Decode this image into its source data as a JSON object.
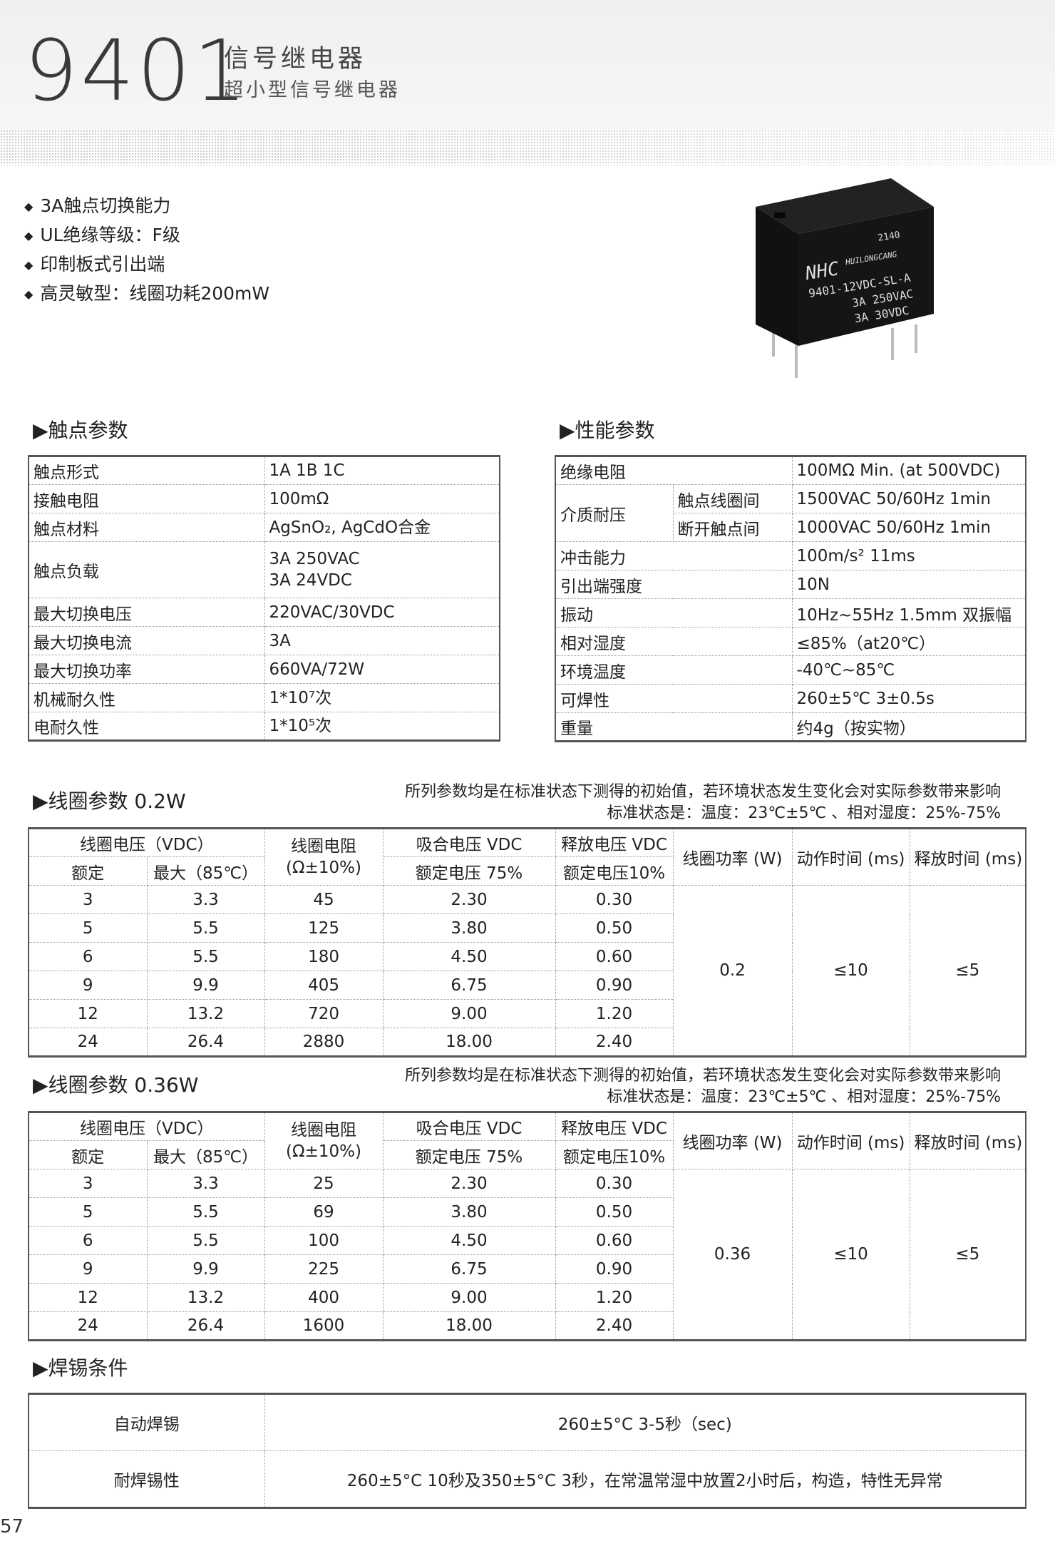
{
  "header": {
    "model": "9401",
    "title": "信号继电器",
    "subtitle": "超小型信号继电器"
  },
  "features": [
    "3A触点切换能力",
    "UL绝缘等级：F级",
    "印制板式引出端",
    "高灵敏型：线圈功耗200mW"
  ],
  "product_image": {
    "date_code": "2140",
    "logo": "NHC",
    "brand": "HUILONGCANG",
    "part": "9401-12VDC-SL-A",
    "rating1": "3A  250VAC",
    "rating2": "3A  30VDC"
  },
  "contact": {
    "title": "▶触点参数",
    "rows": [
      {
        "label": "触点形式",
        "value": [
          "1A 1B 1C"
        ]
      },
      {
        "label": "接触电阻",
        "value": [
          "100mΩ"
        ]
      },
      {
        "label": "触点材料",
        "value": [
          "AgSnO₂, AgCdO合金"
        ]
      },
      {
        "label": "触点负载",
        "value": [
          "3A 250VAC",
          "3A 24VDC"
        ]
      },
      {
        "label": "最大切换电压",
        "value": [
          "220VAC/30VDC"
        ]
      },
      {
        "label": "最大切换电流",
        "value": [
          "3A"
        ]
      },
      {
        "label": "最大切换功率",
        "value": [
          "660VA/72W"
        ]
      },
      {
        "label": "机械耐久性",
        "value": [
          "1*10⁷次"
        ]
      },
      {
        "label": "电耐久性",
        "value": [
          "1*10⁵次"
        ]
      }
    ]
  },
  "performance": {
    "title": "▶性能参数",
    "rows": [
      {
        "label": "绝缘电阻",
        "value": "100MΩ Min. (at 500VDC)"
      },
      {
        "label": "介质耐压",
        "subs": [
          {
            "label": "触点线圈间",
            "value": "1500VAC 50/60Hz 1min"
          },
          {
            "label": "断开触点间",
            "value": "1000VAC 50/60Hz 1min"
          }
        ]
      },
      {
        "label": "冲击能力",
        "value": "100m/s² 11ms"
      },
      {
        "label": "引出端强度",
        "value": "10N"
      },
      {
        "label": "振动",
        "value": "10Hz~55Hz 1.5mm 双振幅"
      },
      {
        "label": "相对湿度",
        "value": "≤85%（at20℃）"
      },
      {
        "label": "环境温度",
        "value": "-40℃~85℃"
      },
      {
        "label": "可焊性",
        "value": "260±5℃  3±0.5s"
      },
      {
        "label": "重量",
        "value": "约4g（按实物）"
      }
    ]
  },
  "coil_headers": {
    "voltage": "线圈电压（VDC）",
    "rated": "额定",
    "max": "最大（85℃）",
    "resistance": "线圈电阻",
    "resistance_tol": "(Ω±10%)",
    "pickup": "吸合电压 VDC",
    "pickup_sub": "额定电压 75%",
    "release": "释放电压 VDC",
    "release_sub": "额定电压10%",
    "power": "线圈功率 (W)",
    "operate": "动作时间 (ms)",
    "release_time": "释放时间 (ms)"
  },
  "coil_note": {
    "line1": "所列参数均是在标准状态下测得的初始值，若环境状态发生变化会对实际参数带来影响",
    "line2": "标准状态是：温度：23℃±5℃ 、相对湿度：25%-75%"
  },
  "coil_tables": [
    {
      "title": "▶线圈参数 0.2W",
      "power": "0.2",
      "operate": "≤10",
      "release_time": "≤5",
      "rows": [
        [
          "3",
          "3.3",
          "45",
          "2.30",
          "0.30"
        ],
        [
          "5",
          "5.5",
          "125",
          "3.80",
          "0.50"
        ],
        [
          "6",
          "5.5",
          "180",
          "4.50",
          "0.60"
        ],
        [
          "9",
          "9.9",
          "405",
          "6.75",
          "0.90"
        ],
        [
          "12",
          "13.2",
          "720",
          "9.00",
          "1.20"
        ],
        [
          "24",
          "26.4",
          "2880",
          "18.00",
          "2.40"
        ]
      ]
    },
    {
      "title": "▶线圈参数 0.36W",
      "power": "0.36",
      "operate": "≤10",
      "release_time": "≤5",
      "rows": [
        [
          "3",
          "3.3",
          "25",
          "2.30",
          "0.30"
        ],
        [
          "5",
          "5.5",
          "69",
          "3.80",
          "0.50"
        ],
        [
          "6",
          "5.5",
          "100",
          "4.50",
          "0.60"
        ],
        [
          "9",
          "9.9",
          "225",
          "6.75",
          "0.90"
        ],
        [
          "12",
          "13.2",
          "400",
          "9.00",
          "1.20"
        ],
        [
          "24",
          "26.4",
          "1600",
          "18.00",
          "2.40"
        ]
      ]
    }
  ],
  "soldering": {
    "title": "▶焊锡条件",
    "rows": [
      {
        "label": "自动焊锡",
        "value": "260±5°C 3-5秒（sec)"
      },
      {
        "label": "耐焊锡性",
        "value": "260±5°C 10秒及350±5°C 3秒，在常温常湿中放置2小时后，构造，特性无异常"
      }
    ]
  },
  "page_number": "57"
}
